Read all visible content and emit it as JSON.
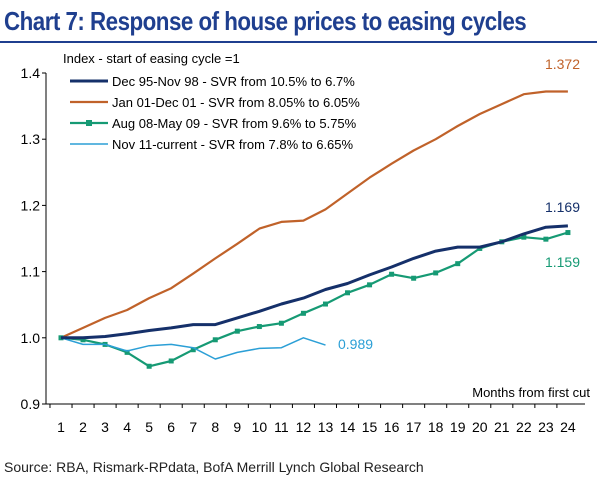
{
  "title": "Chart 7: Response of house prices to easing cycles",
  "source": "Source: RBA, Rismark-RPdata,  BofA Merrill Lynch Global Research",
  "chart_data": {
    "type": "line",
    "ylabel": "Index - start of easing cycle =1",
    "xlabel": "Months from first cut",
    "ylim": [
      0.9,
      1.4
    ],
    "yticks": [
      "0.9",
      "1.0",
      "1.1",
      "1.2",
      "1.3",
      "1.4"
    ],
    "xlim": [
      1,
      24
    ],
    "x": [
      1,
      2,
      3,
      4,
      5,
      6,
      7,
      8,
      9,
      10,
      11,
      12,
      13,
      14,
      15,
      16,
      17,
      18,
      19,
      20,
      21,
      22,
      23,
      24
    ],
    "legend_position": "top-left",
    "series": [
      {
        "name": "Dec 95-Nov 98 - SVR from 10.5% to 6.7%",
        "color": "#15306a",
        "marker": false,
        "values": [
          1.0,
          1.0,
          1.002,
          1.006,
          1.011,
          1.015,
          1.02,
          1.02,
          1.03,
          1.04,
          1.051,
          1.06,
          1.073,
          1.082,
          1.095,
          1.107,
          1.12,
          1.131,
          1.137,
          1.137,
          1.145,
          1.157,
          1.167,
          1.169
        ],
        "end_label": "1.169"
      },
      {
        "name": "Jan 01-Dec 01 - SVR from 8.05% to 6.05%",
        "color": "#c0622a",
        "marker": false,
        "values": [
          1.0,
          1.015,
          1.03,
          1.042,
          1.06,
          1.075,
          1.097,
          1.12,
          1.142,
          1.165,
          1.175,
          1.177,
          1.194,
          1.218,
          1.242,
          1.263,
          1.283,
          1.3,
          1.32,
          1.338,
          1.353,
          1.368,
          1.372,
          1.372
        ],
        "end_label": "1.372"
      },
      {
        "name": "Aug 08-May 09 - SVR from 9.6% to 5.75%",
        "color": "#169a74",
        "marker": true,
        "values": [
          1.0,
          0.997,
          0.99,
          0.978,
          0.957,
          0.965,
          0.982,
          0.997,
          1.01,
          1.017,
          1.022,
          1.037,
          1.051,
          1.068,
          1.08,
          1.096,
          1.09,
          1.098,
          1.112,
          1.135,
          1.145,
          1.152,
          1.149,
          1.159
        ],
        "end_label": "1.159"
      },
      {
        "name": "Nov 11-current - SVR from 7.8% to 6.65%",
        "color": "#2b9fd6",
        "marker": false,
        "values": [
          1.0,
          0.99,
          0.99,
          0.98,
          0.988,
          0.99,
          0.985,
          0.968,
          0.978,
          0.984,
          0.985,
          1.0,
          0.989,
          null,
          null,
          null,
          null,
          null,
          null,
          null,
          null,
          null,
          null,
          null
        ],
        "end_label": "0.989"
      }
    ]
  }
}
